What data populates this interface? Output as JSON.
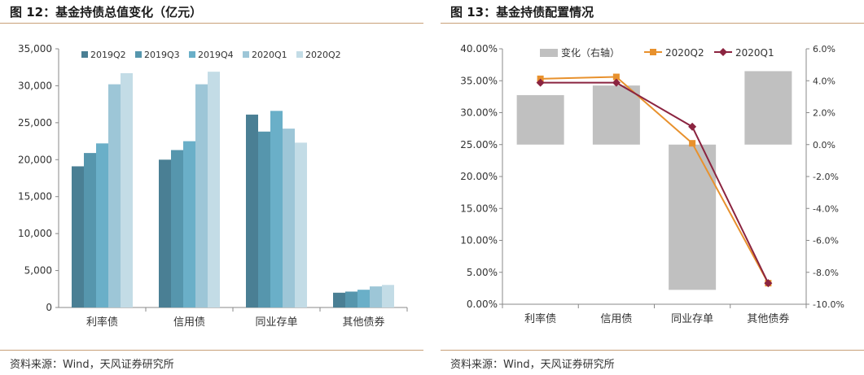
{
  "charts": [
    {
      "title": "图 12：基金持债总值变化（亿元）",
      "source": "资料来源：Wind，天风证券研究所"
    },
    {
      "title": "图 13：基金持债配置情况",
      "source": "资料来源：Wind，天风证券研究所"
    }
  ],
  "chart_data": [
    {
      "type": "bar",
      "title": "图 12：基金持债总值变化（亿元）",
      "categories": [
        "利率债",
        "信用债",
        "同业存单",
        "其他债券"
      ],
      "series": [
        {
          "name": "2019Q2",
          "color": "#4a7f94",
          "values": [
            19100,
            20000,
            26100,
            2000
          ]
        },
        {
          "name": "2019Q3",
          "color": "#5696ad",
          "values": [
            20900,
            21300,
            23800,
            2150
          ]
        },
        {
          "name": "2019Q4",
          "color": "#6aafc8",
          "values": [
            22200,
            22500,
            26600,
            2400
          ]
        },
        {
          "name": "2020Q1",
          "color": "#9dc6d7",
          "values": [
            30200,
            30200,
            24200,
            2850
          ]
        },
        {
          "name": "2020Q2",
          "color": "#c3dce6",
          "values": [
            31700,
            31900,
            22300,
            3050
          ]
        }
      ],
      "ylim": [
        0,
        35000
      ],
      "yticks": [
        0,
        5000,
        10000,
        15000,
        20000,
        25000,
        30000,
        35000
      ],
      "ytick_labels": [
        "0",
        "5,000",
        "10,000",
        "15,000",
        "20,000",
        "25,000",
        "30,000",
        "35,000"
      ],
      "legend": "top",
      "grid": false
    },
    {
      "type": "bar+line",
      "title": "图 13：基金持债配置情况",
      "categories": [
        "利率债",
        "信用债",
        "同业存单",
        "其他债券"
      ],
      "bars": {
        "name": "变化（右轴）",
        "axis": "right",
        "color": "#c0c0c0",
        "values": [
          3.1,
          3.7,
          -9.1,
          4.6
        ]
      },
      "lines": [
        {
          "name": "2020Q2",
          "axis": "left",
          "color": "#e8912d",
          "marker": "square",
          "values": [
            35.3,
            35.6,
            25.2,
            3.3
          ]
        },
        {
          "name": "2020Q1",
          "axis": "left",
          "color": "#8b2440",
          "marker": "diamond",
          "values": [
            34.7,
            34.7,
            27.8,
            3.3
          ]
        }
      ],
      "left_ylim": [
        0,
        40
      ],
      "left_yticks": [
        0,
        5,
        10,
        15,
        20,
        25,
        30,
        35,
        40
      ],
      "left_ytick_labels": [
        "0.00%",
        "5.00%",
        "10.00%",
        "15.00%",
        "20.00%",
        "25.00%",
        "30.00%",
        "35.00%",
        "40.00%"
      ],
      "right_ylim": [
        -10,
        6
      ],
      "right_yticks": [
        -10,
        -8,
        -6,
        -4,
        -2,
        0,
        2,
        4,
        6
      ],
      "right_ytick_labels": [
        "-10.0%",
        "-8.0%",
        "-6.0%",
        "-4.0%",
        "-2.0%",
        "0.0%",
        "2.0%",
        "4.0%",
        "6.0%"
      ],
      "legend": "top",
      "grid": false
    }
  ]
}
